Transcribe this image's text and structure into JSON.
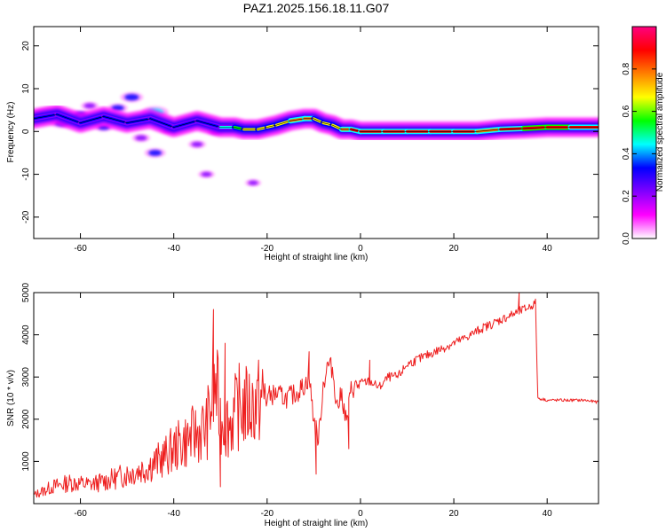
{
  "figure_title": "PAZ1.2025.156.18.11.G07",
  "chart_data": [
    {
      "type": "heatmap",
      "title": "",
      "xlabel": "Height of straight line (km)",
      "ylabel": "Frequency (Hz)",
      "xlim": [
        -70,
        51
      ],
      "ylim": [
        -25,
        24.5
      ],
      "xticks": [
        -60,
        -40,
        -20,
        0,
        20,
        40
      ],
      "xtick_labels": [
        "-60",
        "-40",
        "-20",
        "0",
        "20",
        "40"
      ],
      "yticks": [
        -20,
        -10,
        0,
        10,
        20
      ],
      "ytick_labels": [
        "-20",
        "-10",
        "0",
        "10",
        "20"
      ],
      "grid": false,
      "colorbar": {
        "label": "Normalized spectral amplitude",
        "range": [
          0,
          1
        ],
        "ticks": [
          0.0,
          0.2,
          0.4,
          0.6,
          0.8
        ],
        "tick_labels": [
          "0.0",
          "0.2",
          "0.4",
          "0.6",
          "0.8"
        ],
        "colormap": [
          "#ffffff",
          "#ff00ff",
          "#8000ff",
          "#0000ff",
          "#00ffff",
          "#00ff00",
          "#ffff00",
          "#ff8000",
          "#ff0000",
          "#ff0080"
        ]
      },
      "ridge": {
        "x": [
          -70,
          -65,
          -60,
          -55,
          -50,
          -45,
          -40,
          -35,
          -30,
          -27,
          -25,
          -22,
          -20,
          -18,
          -15,
          -12,
          -10,
          -8,
          -6,
          -4,
          -2,
          0,
          5,
          10,
          15,
          20,
          25,
          30,
          35,
          40,
          45,
          51
        ],
        "y": [
          3,
          4,
          2,
          3.5,
          2,
          3,
          1,
          2.5,
          1,
          1,
          0.5,
          0.5,
          1,
          1.5,
          2.5,
          3,
          3,
          2,
          1.5,
          0.5,
          0.5,
          0,
          0,
          0,
          0,
          0,
          0,
          0.5,
          0.7,
          1,
          1,
          1
        ],
        "amplitude": [
          0.35,
          0.4,
          0.3,
          0.4,
          0.3,
          0.35,
          0.3,
          0.35,
          0.3,
          0.55,
          0.6,
          0.65,
          0.6,
          0.7,
          0.7,
          0.75,
          0.7,
          0.7,
          0.65,
          0.7,
          0.85,
          0.9,
          0.9,
          0.85,
          0.9,
          0.9,
          0.8,
          0.85,
          0.9,
          0.95,
          0.9,
          0.9
        ]
      },
      "blobs": [
        {
          "x": -67,
          "y": 4,
          "amplitude": 0.25
        },
        {
          "x": -64,
          "y": 2,
          "amplitude": 0.15
        },
        {
          "x": -60,
          "y": 4,
          "amplitude": 0.08
        },
        {
          "x": -58,
          "y": 6,
          "amplitude": 0.06
        },
        {
          "x": -55,
          "y": 1,
          "amplitude": 0.08
        },
        {
          "x": -52,
          "y": 5.5,
          "amplitude": 0.1
        },
        {
          "x": -49,
          "y": 8,
          "amplitude": 0.15
        },
        {
          "x": -47,
          "y": -1.5,
          "amplitude": 0.07
        },
        {
          "x": -44,
          "y": 4.5,
          "amplitude": 0.22
        },
        {
          "x": -44,
          "y": -5,
          "amplitude": 0.12
        },
        {
          "x": -41,
          "y": 0.5,
          "amplitude": 0.08
        },
        {
          "x": -37,
          "y": 2,
          "amplitude": 0.2
        },
        {
          "x": -35,
          "y": -3,
          "amplitude": 0.06
        },
        {
          "x": -33,
          "y": -10,
          "amplitude": 0.04
        },
        {
          "x": -31,
          "y": 0,
          "amplitude": 0.05
        },
        {
          "x": -23,
          "y": -12,
          "amplitude": 0.03
        }
      ]
    },
    {
      "type": "line",
      "title": "",
      "xlabel": "Height of straight line (km)",
      "ylabel": "SNR (10 * v/v)",
      "xlim": [
        -70,
        51
      ],
      "ylim": [
        0,
        5000
      ],
      "xticks": [
        -60,
        -40,
        -20,
        0,
        20,
        40
      ],
      "xtick_labels": [
        "-60",
        "-40",
        "-20",
        "0",
        "20",
        "40"
      ],
      "yticks": [
        1000,
        2000,
        3000,
        4000,
        5000
      ],
      "ytick_labels": [
        "1000",
        "2000",
        "3000",
        "4000",
        "5000"
      ],
      "grid": false,
      "color": "#ee2020",
      "series": [
        {
          "x": [
            -70,
            -66,
            -62,
            -58,
            -54,
            -50,
            -46,
            -42,
            -40,
            -36,
            -33,
            -31,
            -30,
            -28,
            -26,
            -24,
            -22,
            -20,
            -18,
            -16,
            -14,
            -12,
            -11,
            -10,
            -9,
            -8,
            -7,
            -6,
            -5,
            -4,
            -3,
            -2,
            0,
            2,
            4,
            6,
            8,
            10,
            14,
            18,
            22,
            26,
            30,
            34,
            36,
            37.5,
            38,
            40,
            44,
            48,
            51
          ],
          "y": [
            200,
            400,
            500,
            450,
            550,
            700,
            850,
            1100,
            1300,
            1600,
            1800,
            2800,
            2000,
            1900,
            2300,
            2300,
            2400,
            2550,
            2600,
            2500,
            2600,
            2800,
            3000,
            2000,
            1500,
            2800,
            3300,
            3200,
            2300,
            2600,
            1900,
            2700,
            2850,
            2900,
            2750,
            3000,
            3000,
            3300,
            3500,
            3700,
            3900,
            4150,
            4350,
            4550,
            4650,
            4750,
            2500,
            2450,
            2450,
            2450,
            2400
          ],
          "spikes": [
            {
              "x": -31.5,
              "y": 4600
            },
            {
              "x": -29,
              "y": 3800
            },
            {
              "x": -30,
              "y": 400
            },
            {
              "x": -9.5,
              "y": 700
            },
            {
              "x": -11,
              "y": 3600
            },
            {
              "x": -2.5,
              "y": 1300
            },
            {
              "x": 2,
              "y": 3400
            },
            {
              "x": 34,
              "y": 5000
            }
          ]
        }
      ]
    }
  ]
}
